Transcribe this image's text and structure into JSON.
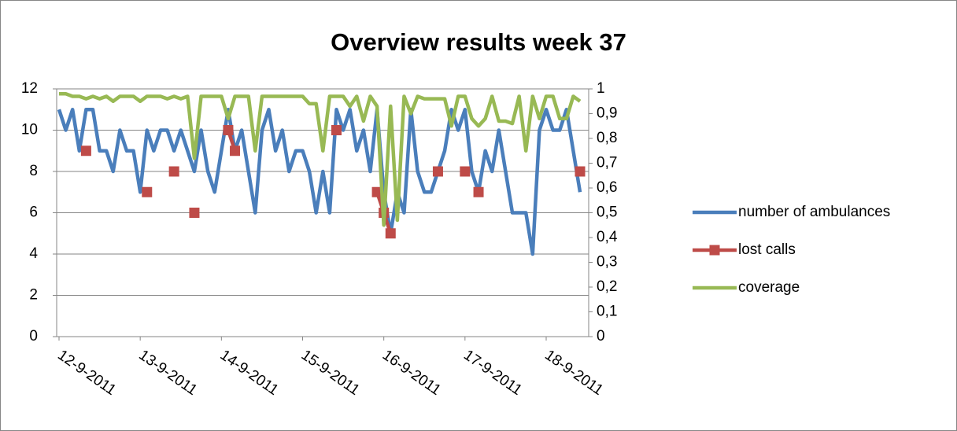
{
  "chart_data": {
    "type": "line",
    "title": "Overview results week 37",
    "categories": [
      "12-9-2011",
      null,
      null,
      null,
      null,
      null,
      null,
      null,
      null,
      null,
      null,
      null,
      "13-9-2011",
      null,
      null,
      null,
      null,
      null,
      null,
      null,
      null,
      null,
      null,
      null,
      "14-9-2011",
      null,
      null,
      null,
      null,
      null,
      null,
      null,
      null,
      null,
      null,
      null,
      "15-9-2011",
      null,
      null,
      null,
      null,
      null,
      null,
      null,
      null,
      null,
      null,
      null,
      "16-9-2011",
      null,
      null,
      null,
      null,
      null,
      null,
      null,
      null,
      null,
      null,
      null,
      "17-9-2011",
      null,
      null,
      null,
      null,
      null,
      null,
      null,
      null,
      null,
      null,
      null,
      "18-9-2011",
      null,
      null,
      null,
      null,
      null
    ],
    "series": [
      {
        "name": "number of ambulances",
        "color": "#4a7ebb",
        "values": [
          11,
          10,
          11,
          9,
          11,
          11,
          9,
          9,
          8,
          10,
          9,
          9,
          7,
          10,
          9,
          10,
          10,
          9,
          10,
          9,
          8,
          10,
          8,
          7,
          9,
          11,
          9,
          10,
          8,
          6,
          10,
          11,
          9,
          10,
          8,
          9,
          9,
          8,
          6,
          8,
          6,
          11,
          10,
          11,
          9,
          10,
          8,
          11,
          7,
          5,
          7,
          6,
          11,
          8,
          7,
          7,
          8,
          9,
          11,
          10,
          11,
          8,
          7,
          9,
          8,
          10,
          8,
          6,
          6,
          6,
          4,
          10,
          11,
          10,
          10,
          11,
          9,
          7
        ]
      },
      {
        "name": "lost calls",
        "color": "#be4b48",
        "marker": "square",
        "values": [
          null,
          null,
          null,
          null,
          9,
          null,
          null,
          null,
          null,
          null,
          null,
          null,
          null,
          7,
          null,
          null,
          null,
          8,
          null,
          null,
          6,
          null,
          null,
          null,
          null,
          10,
          9,
          null,
          null,
          null,
          null,
          null,
          null,
          null,
          null,
          null,
          null,
          null,
          null,
          null,
          null,
          10,
          null,
          null,
          null,
          null,
          null,
          7,
          6,
          5,
          null,
          null,
          null,
          null,
          null,
          null,
          8,
          null,
          null,
          null,
          8,
          null,
          7,
          null,
          null,
          null,
          null,
          null,
          null,
          null,
          null,
          null,
          null,
          null,
          null,
          null,
          null,
          8
        ]
      },
      {
        "name": "coverage",
        "color": "#98b954",
        "axis": "y2",
        "values": [
          0.98,
          0.98,
          0.97,
          0.97,
          0.96,
          0.97,
          0.96,
          0.97,
          0.95,
          0.97,
          0.97,
          0.97,
          0.95,
          0.97,
          0.97,
          0.97,
          0.96,
          0.97,
          0.96,
          0.97,
          0.72,
          0.97,
          0.97,
          0.97,
          0.97,
          0.88,
          0.97,
          0.97,
          0.97,
          0.75,
          0.97,
          0.97,
          0.97,
          0.97,
          0.97,
          0.97,
          0.97,
          0.94,
          0.94,
          0.75,
          0.97,
          0.97,
          0.97,
          0.93,
          0.97,
          0.87,
          0.97,
          0.93,
          0.45,
          0.93,
          0.47,
          0.97,
          0.9,
          0.97,
          0.96,
          0.96,
          0.96,
          0.96,
          0.85,
          0.97,
          0.97,
          0.88,
          0.85,
          0.88,
          0.97,
          0.87,
          0.87,
          0.86,
          0.97,
          0.75,
          0.97,
          0.88,
          0.97,
          0.97,
          0.88,
          0.88,
          0.97,
          0.95
        ]
      }
    ],
    "ylim": [
      0,
      12
    ],
    "yticks": [
      0,
      2,
      4,
      6,
      8,
      10,
      12
    ],
    "y2lim": [
      0,
      1
    ],
    "y2ticks": [
      0,
      {
        "value": 0.1,
        "label": "0,1"
      },
      {
        "value": 0.2,
        "label": "0,2"
      },
      {
        "value": 0.3,
        "label": "0,3"
      },
      {
        "value": 0.4,
        "label": "0,4"
      },
      {
        "value": 0.5,
        "label": "0,5"
      },
      {
        "value": 0.6,
        "label": "0,6"
      },
      {
        "value": 0.7,
        "label": "0,7"
      },
      {
        "value": 0.8,
        "label": "0,8"
      },
      {
        "value": 0.9,
        "label": "0,9"
      },
      1
    ],
    "grid": true,
    "legend": "right"
  }
}
